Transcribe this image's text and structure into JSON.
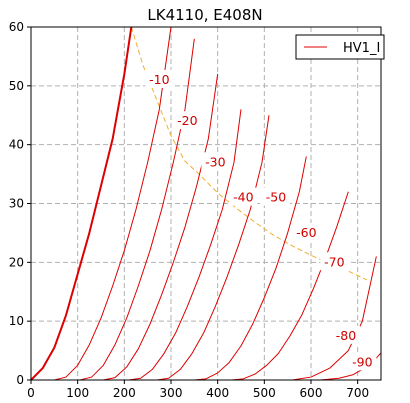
{
  "chart_data": {
    "type": "line",
    "title": "LK4110, E408N",
    "xlabel": "",
    "ylabel": "",
    "xlim": [
      0,
      750
    ],
    "ylim": [
      0,
      60
    ],
    "x_ticks": [
      0,
      100,
      200,
      300,
      400,
      500,
      600,
      700
    ],
    "y_ticks": [
      0,
      10,
      20,
      30,
      40,
      50,
      60
    ],
    "grid": true,
    "legend": {
      "position": "top-right",
      "entries": [
        "HV1_I"
      ]
    },
    "colors": {
      "curves": "#dd0000",
      "dissipation": "#f0b030",
      "grid": "#b0b0b0"
    },
    "series": [
      {
        "name": "HV1_I",
        "grid_voltage": "0",
        "bold": true,
        "x": [
          0,
          25,
          50,
          75,
          100,
          125,
          150,
          175,
          200,
          215
        ],
        "y": [
          0,
          2,
          5.5,
          11,
          18,
          25,
          33,
          41,
          52,
          60
        ]
      },
      {
        "grid_voltage": "-10",
        "label": "-10",
        "x": [
          50,
          75,
          100,
          125,
          150,
          175,
          200,
          225,
          250,
          275,
          300
        ],
        "y": [
          0,
          0.5,
          2.5,
          6,
          10.5,
          16,
          22,
          29,
          37,
          46,
          60
        ]
      },
      {
        "grid_voltage": "-20",
        "label": "-20",
        "x": [
          105,
          130,
          155,
          180,
          205,
          230,
          255,
          280,
          305,
          330,
          350
        ],
        "y": [
          0,
          0.5,
          2.5,
          6,
          10.5,
          16,
          22,
          29,
          37,
          46,
          58
        ]
      },
      {
        "grid_voltage": "-30",
        "label": "-30",
        "x": [
          155,
          180,
          205,
          230,
          255,
          280,
          305,
          330,
          355,
          380,
          400
        ],
        "y": [
          0,
          0.4,
          2.2,
          5.3,
          9.5,
          14.5,
          20,
          26,
          33,
          41,
          52
        ]
      },
      {
        "grid_voltage": "-40",
        "label": "-40",
        "x": [
          210,
          235,
          260,
          285,
          310,
          335,
          360,
          385,
          410,
          435,
          450
        ],
        "y": [
          0,
          0.3,
          1.8,
          4.5,
          8,
          12.5,
          17.5,
          23,
          29,
          37,
          46
        ]
      },
      {
        "grid_voltage": "-50",
        "label": "-50",
        "x": [
          270,
          295,
          320,
          345,
          370,
          395,
          420,
          445,
          470,
          495,
          510
        ],
        "y": [
          0,
          0.3,
          1.8,
          4.5,
          8,
          12.5,
          17.5,
          23,
          29,
          37,
          45
        ]
      },
      {
        "grid_voltage": "-60",
        "label": "-60",
        "x": [
          350,
          375,
          400,
          425,
          450,
          475,
          500,
          525,
          550,
          575,
          590
        ],
        "y": [
          0,
          0.2,
          1.2,
          3,
          5.8,
          9.5,
          14,
          19,
          25,
          32,
          38
        ]
      },
      {
        "grid_voltage": "-70",
        "label": "-70",
        "x": [
          430,
          455,
          480,
          505,
          530,
          555,
          580,
          605,
          630,
          655,
          680
        ],
        "y": [
          0,
          0.2,
          1,
          2.5,
          4.5,
          7.5,
          11,
          15.5,
          20.5,
          26,
          32
        ]
      },
      {
        "grid_voltage": "-80",
        "label": "-80",
        "x": [
          560,
          600,
          640,
          680,
          710,
          740
        ],
        "y": [
          0,
          0.5,
          2,
          5,
          10,
          21
        ]
      },
      {
        "grid_voltage": "-90",
        "label": "-90",
        "x": [
          620,
          660,
          690,
          715,
          735,
          750
        ],
        "y": [
          0,
          0.3,
          0.9,
          2,
          3.3,
          4.6
        ]
      }
    ],
    "dissipation_curve": {
      "x": [
        215,
        240,
        270,
        300,
        330,
        360,
        400,
        440,
        480,
        520,
        560,
        600,
        640,
        680,
        720
      ],
      "y": [
        60,
        53.5,
        47.5,
        41.5,
        37.2,
        35,
        31.8,
        29.2,
        26.8,
        24.6,
        22.8,
        21.2,
        19.8,
        18.5,
        17
      ]
    },
    "curve_labels": [
      {
        "text": "-10",
        "x": 275,
        "y": 51
      },
      {
        "text": "-20",
        "x": 335,
        "y": 44
      },
      {
        "text": "-30",
        "x": 395,
        "y": 37
      },
      {
        "text": "-40",
        "x": 455,
        "y": 31
      },
      {
        "text": "-50",
        "x": 525,
        "y": 31
      },
      {
        "text": "-60",
        "x": 590,
        "y": 25
      },
      {
        "text": "-70",
        "x": 650,
        "y": 20
      },
      {
        "text": "-80",
        "x": 675,
        "y": 7.5
      },
      {
        "text": "-90",
        "x": 710,
        "y": 3
      }
    ]
  }
}
